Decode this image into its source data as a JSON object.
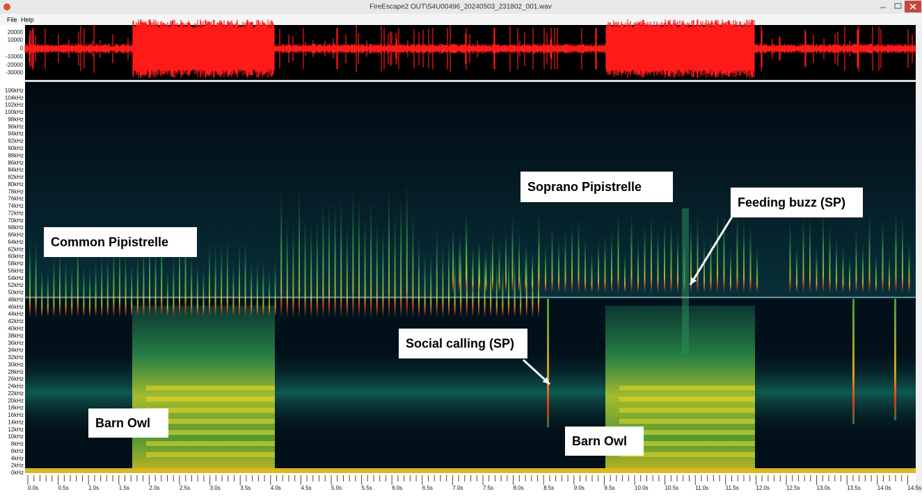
{
  "window": {
    "title": "FireEscape2 OUT\\S4U00496_20240503_231802_001.wav"
  },
  "menu": [
    "File",
    "Help"
  ],
  "waveform": {
    "amplitude_labels": [
      "20000",
      "10000",
      "0",
      "-10000",
      "-20000",
      "-30000"
    ]
  },
  "spectrogram": {
    "frequency_labels": [
      "0kHz",
      "2kHz",
      "4kHz",
      "6kHz",
      "8kHz",
      "10kHz",
      "12kHz",
      "14kHz",
      "16kHz",
      "18kHz",
      "20kHz",
      "22kHz",
      "24kHz",
      "26kHz",
      "28kHz",
      "30kHz",
      "32kHz",
      "34kHz",
      "36kHz",
      "38kHz",
      "40kHz",
      "42kHz",
      "44kHz",
      "46kHz",
      "48kHz",
      "50kHz",
      "52kHz",
      "54kHz",
      "56kHz",
      "58kHz",
      "60kHz",
      "62kHz",
      "64kHz",
      "66kHz",
      "68kHz",
      "70kHz",
      "72kHz",
      "74kHz",
      "76kHz",
      "78kHz",
      "80kHz",
      "82kHz",
      "84kHz",
      "86kHz",
      "88kHz",
      "90kHz",
      "92kHz",
      "94kHz",
      "96kHz",
      "98kHz",
      "100kHz",
      "102kHz",
      "104kHz",
      "106kHz"
    ],
    "time_labels": [
      "0.0s",
      "0.5s",
      "1.0s",
      "1.5s",
      "2.0s",
      "2.5s",
      "3.0s",
      "3.5s",
      "4.0s",
      "4.5s",
      "5.0s",
      "5.5s",
      "6.0s",
      "6.5s",
      "7.0s",
      "7.5s",
      "8.0s",
      "8.5s",
      "9.0s",
      "9.5s",
      "10.0s",
      "10.5s",
      "11.0s",
      "11.5s",
      "12.0s",
      "12.5s",
      "13.0s",
      "13.5s",
      "14.0s",
      "14.5s"
    ],
    "annotations": [
      "Common Pipistrelle",
      "Soprano Pipistrelle",
      "Feeding buzz (SP)",
      "Social calling (SP)",
      "Barn Owl",
      "Barn Owl"
    ]
  }
}
